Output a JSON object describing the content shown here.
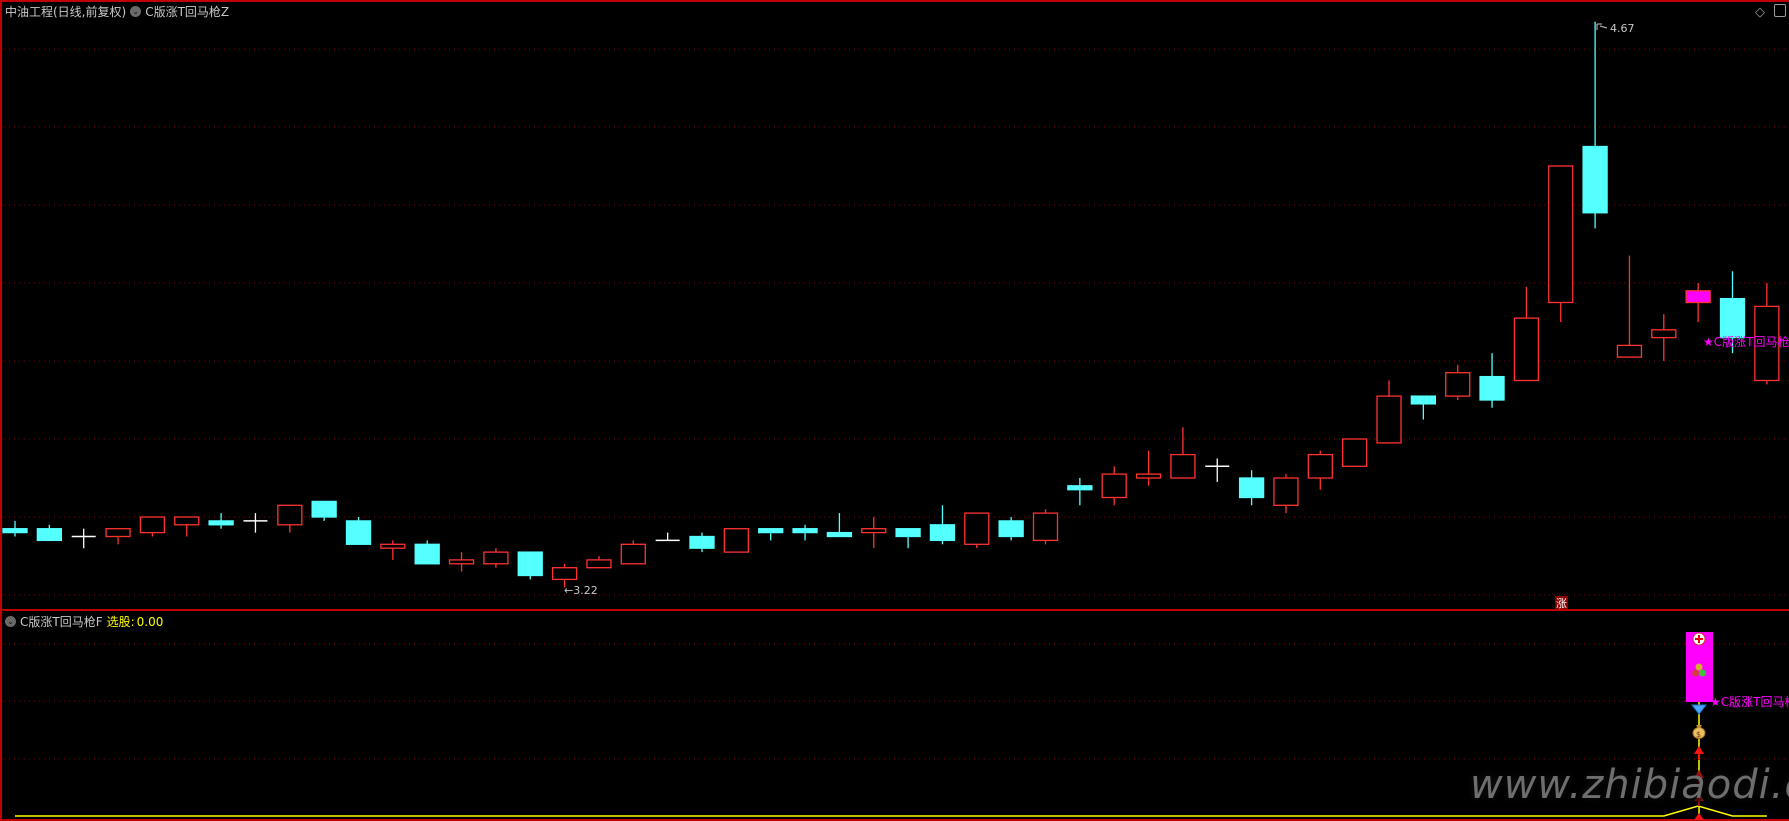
{
  "header": {
    "stock_title": "中油工程(日线,前复权)",
    "indicator_main": "C版涨T回马枪Z"
  },
  "sub_header": {
    "indicator_sub": "C版涨T回马枪F",
    "select_label": "选股:",
    "select_value": "0.00"
  },
  "annotations": {
    "high_label": "4.67",
    "low_label": "←3.22",
    "signal_label": "★C版涨T回马枪",
    "signal_label_sub": "★C版涨T回马枪",
    "zhang_badge": "涨"
  },
  "watermark": "www.zhibiaodi.com",
  "icons": [
    "chevron-down-icon",
    "diamond-icon",
    "panel-toggle-icon",
    "red-cross-icon",
    "balls-icon",
    "diamond-gem-icon",
    "money-bag-icon",
    "up-arrow-icon"
  ],
  "colors": {
    "up": "#ff3232",
    "down": "#54ffff",
    "doji": "#ffffff",
    "signal": "#ff00ff",
    "grid": "#8b0000",
    "border": "#c00000",
    "indicator_line": "#ffff00"
  },
  "chart_data": {
    "type": "candlestick",
    "ylim": [
      3.2,
      4.7
    ],
    "grid_levels": [
      4.6,
      4.4,
      4.2,
      4.0,
      3.8,
      3.6,
      3.4,
      3.2
    ],
    "grid": true,
    "highlight_index": 49,
    "ohlc": [
      [
        3.37,
        3.39,
        3.35,
        3.36
      ],
      [
        3.37,
        3.38,
        3.34,
        3.34
      ],
      [
        3.35,
        3.37,
        3.32,
        3.35
      ],
      [
        3.35,
        3.37,
        3.33,
        3.37
      ],
      [
        3.36,
        3.4,
        3.35,
        3.4
      ],
      [
        3.38,
        3.4,
        3.35,
        3.4
      ],
      [
        3.39,
        3.41,
        3.37,
        3.38
      ],
      [
        3.39,
        3.41,
        3.36,
        3.39
      ],
      [
        3.38,
        3.43,
        3.36,
        3.43
      ],
      [
        3.44,
        3.44,
        3.39,
        3.4
      ],
      [
        3.39,
        3.4,
        3.33,
        3.33
      ],
      [
        3.32,
        3.34,
        3.29,
        3.33
      ],
      [
        3.33,
        3.34,
        3.28,
        3.28
      ],
      [
        3.28,
        3.31,
        3.26,
        3.29
      ],
      [
        3.28,
        3.32,
        3.27,
        3.31
      ],
      [
        3.31,
        3.31,
        3.24,
        3.25
      ],
      [
        3.24,
        3.28,
        3.22,
        3.27
      ],
      [
        3.27,
        3.3,
        3.27,
        3.29
      ],
      [
        3.28,
        3.34,
        3.28,
        3.33
      ],
      [
        3.34,
        3.36,
        3.34,
        3.34
      ],
      [
        3.35,
        3.36,
        3.31,
        3.32
      ],
      [
        3.31,
        3.37,
        3.31,
        3.37
      ],
      [
        3.37,
        3.37,
        3.34,
        3.36
      ],
      [
        3.37,
        3.38,
        3.34,
        3.36
      ],
      [
        3.36,
        3.41,
        3.35,
        3.35
      ],
      [
        3.36,
        3.4,
        3.32,
        3.37
      ],
      [
        3.37,
        3.37,
        3.32,
        3.35
      ],
      [
        3.38,
        3.43,
        3.33,
        3.34
      ],
      [
        3.33,
        3.41,
        3.32,
        3.41
      ],
      [
        3.39,
        3.4,
        3.34,
        3.35
      ],
      [
        3.34,
        3.42,
        3.33,
        3.41
      ],
      [
        3.48,
        3.5,
        3.43,
        3.47
      ],
      [
        3.45,
        3.53,
        3.43,
        3.51
      ],
      [
        3.5,
        3.57,
        3.48,
        3.51
      ],
      [
        3.5,
        3.63,
        3.5,
        3.56
      ],
      [
        3.53,
        3.55,
        3.49,
        3.53
      ],
      [
        3.5,
        3.52,
        3.43,
        3.45
      ],
      [
        3.43,
        3.51,
        3.41,
        3.5
      ],
      [
        3.5,
        3.57,
        3.47,
        3.56
      ],
      [
        3.53,
        3.6,
        3.53,
        3.6
      ],
      [
        3.59,
        3.75,
        3.59,
        3.71
      ],
      [
        3.71,
        3.71,
        3.65,
        3.69
      ],
      [
        3.71,
        3.79,
        3.7,
        3.77
      ],
      [
        3.76,
        3.82,
        3.68,
        3.7
      ],
      [
        3.75,
        3.99,
        3.75,
        3.91
      ],
      [
        3.95,
        4.3,
        3.9,
        4.3
      ],
      [
        4.35,
        4.67,
        4.14,
        4.18
      ],
      [
        3.81,
        4.07,
        3.81,
        3.84
      ],
      [
        3.86,
        3.92,
        3.8,
        3.88
      ],
      [
        3.95,
        4.0,
        3.9,
        3.98
      ],
      [
        3.96,
        4.03,
        3.82,
        3.86
      ],
      [
        3.75,
        4.0,
        3.74,
        3.94
      ]
    ],
    "indicator_select": [
      0,
      0,
      0,
      0,
      0,
      0,
      0,
      0,
      0,
      0,
      0,
      0,
      0,
      0,
      0,
      0,
      0,
      0,
      0,
      0,
      0,
      0,
      0,
      0,
      0,
      0,
      0,
      0,
      0,
      0,
      0,
      0,
      0,
      0,
      0,
      0,
      0,
      0,
      0,
      0,
      0,
      0,
      0,
      0,
      0,
      0,
      0,
      0,
      0,
      1,
      0,
      0
    ]
  }
}
